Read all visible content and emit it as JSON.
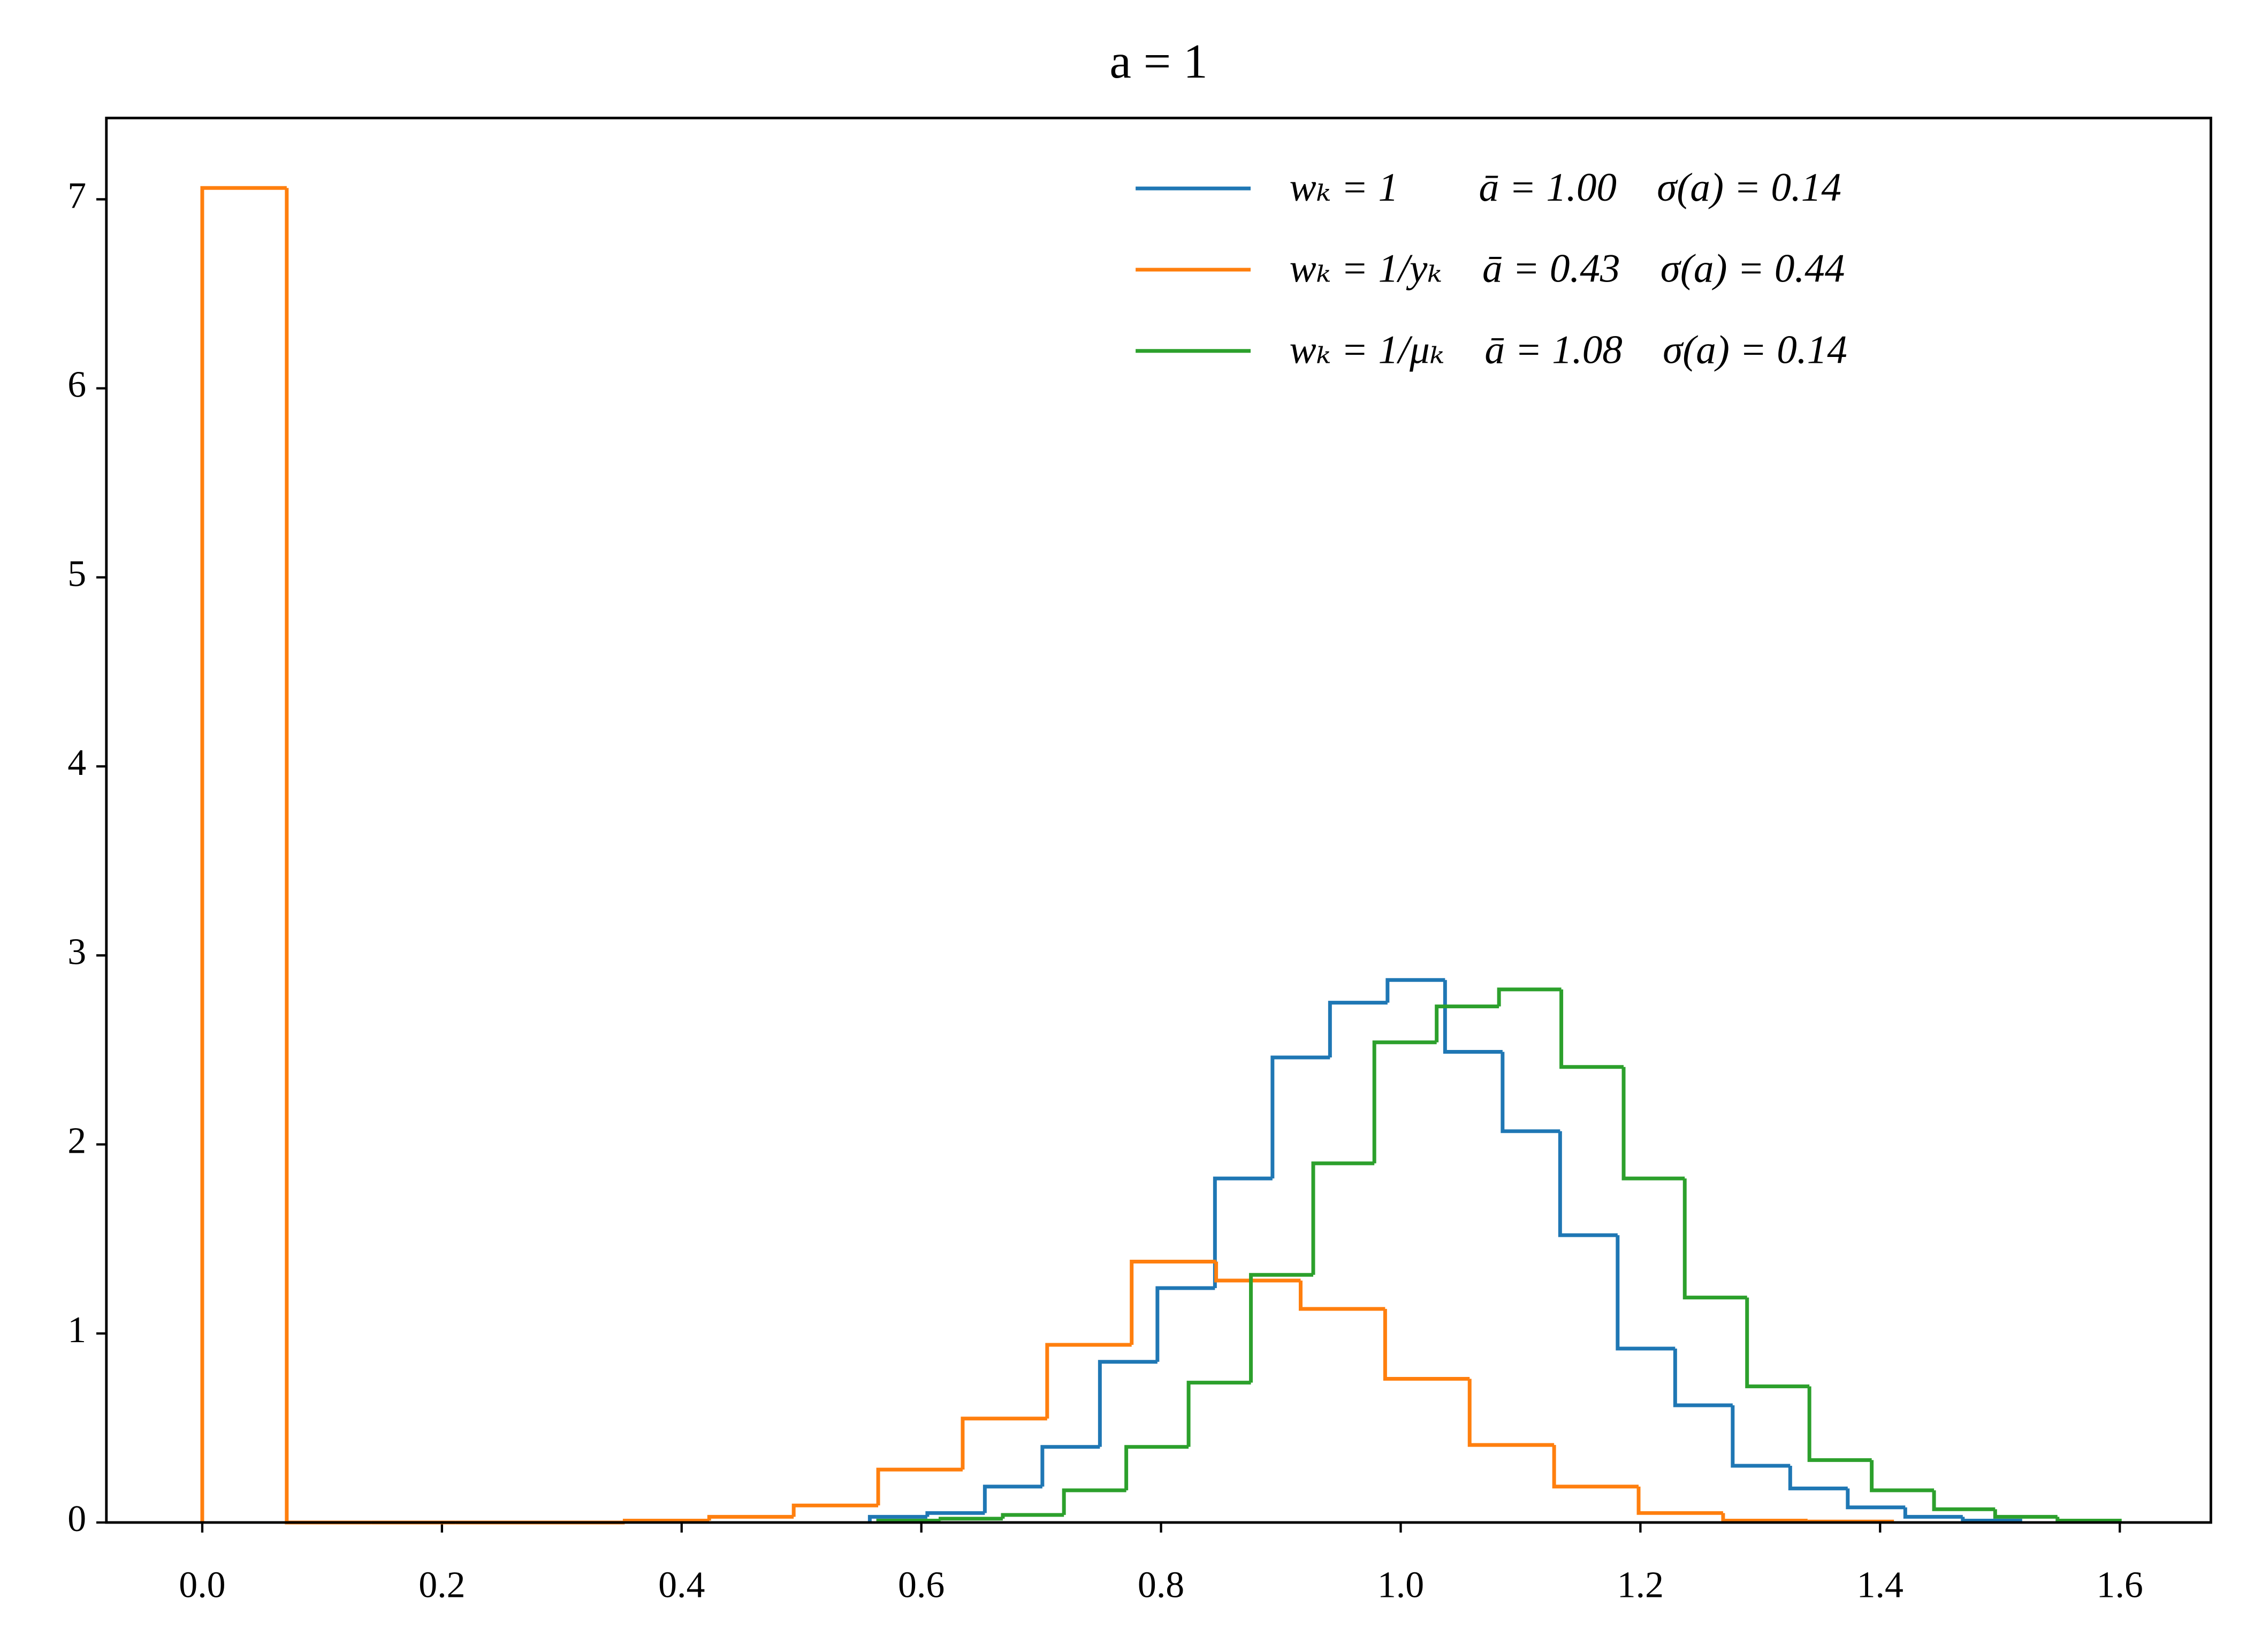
{
  "chart_data": {
    "type": "step-histogram",
    "title": "a = 1",
    "xlim": [
      -0.08,
      1.676
    ],
    "ylim": [
      0,
      7.43
    ],
    "xticks": [
      {
        "value": 0,
        "label": "0.0"
      },
      {
        "value": 0.2,
        "label": "0.2"
      },
      {
        "value": 0.4,
        "label": "0.4"
      },
      {
        "value": 0.6,
        "label": "0.6"
      },
      {
        "value": 0.8,
        "label": "0.8"
      },
      {
        "value": 1,
        "label": "1.0"
      },
      {
        "value": 1.2,
        "label": "1.2"
      },
      {
        "value": 1.4,
        "label": "1.4"
      },
      {
        "value": 1.6,
        "label": "1.6"
      }
    ],
    "yticks": [
      0,
      1,
      2,
      3,
      4,
      5,
      6,
      7
    ],
    "grid": false,
    "legend": "upper right",
    "series": [
      {
        "name": "wₖ = 1        ā = 1.00    σ(a) = 0.14",
        "color": "#1f77b4",
        "bins": [
          0.557,
          0.605,
          0.653,
          0.701,
          0.749,
          0.797,
          0.845,
          0.893,
          0.941,
          0.989,
          1.037,
          1.085,
          1.133,
          1.181,
          1.229,
          1.277,
          1.325,
          1.373,
          1.421,
          1.469,
          1.517
        ],
        "values": [
          0.03,
          0.05,
          0.19,
          0.4,
          0.85,
          1.24,
          1.82,
          2.46,
          2.75,
          2.87,
          2.49,
          2.07,
          1.52,
          0.92,
          0.62,
          0.3,
          0.18,
          0.08,
          0.03,
          0.01
        ]
      },
      {
        "name": "wₖ = 1/yₖ    ā = 0.43    σ(a) = 0.44",
        "color": "#ff7f0e",
        "bins": [
          0,
          0.0705,
          0.141,
          0.2115,
          0.282,
          0.3525,
          0.423,
          0.4935,
          0.564,
          0.6345,
          0.705,
          0.7755,
          0.846,
          0.9165,
          0.987,
          1.0575,
          1.128,
          1.1985,
          1.269,
          1.3395,
          1.41
        ],
        "values": [
          7.06,
          0,
          0,
          0,
          0,
          0.01,
          0.03,
          0.09,
          0.28,
          0.55,
          0.94,
          1.38,
          1.28,
          1.13,
          0.76,
          0.41,
          0.19,
          0.05,
          0.01,
          0.005
        ]
      },
      {
        "name": "wₖ = 1/μₖ    ā = 1.08    σ(a) = 0.14",
        "color": "#2ca02c",
        "bins": [
          0.564,
          0.616,
          0.668,
          0.719,
          0.771,
          0.823,
          0.875,
          0.927,
          0.978,
          1.03,
          1.082,
          1.134,
          1.186,
          1.237,
          1.289,
          1.341,
          1.393,
          1.445,
          1.496,
          1.548,
          1.6
        ],
        "values": [
          0.01,
          0.02,
          0.04,
          0.17,
          0.4,
          0.74,
          1.31,
          1.9,
          2.54,
          2.73,
          2.82,
          2.41,
          1.82,
          1.19,
          0.72,
          0.33,
          0.17,
          0.07,
          0.03,
          0.01
        ]
      }
    ]
  }
}
